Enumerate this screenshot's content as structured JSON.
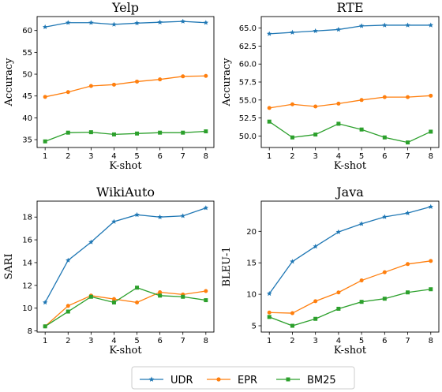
{
  "colors": {
    "UDR": "#1f77b4",
    "EPR": "#ff7f0e",
    "BM25": "#2ca02c"
  },
  "legend": {
    "entries": [
      "UDR",
      "EPR",
      "BM25"
    ],
    "placement": "bottom-center"
  },
  "chart_data": [
    {
      "type": "line",
      "title": "Yelp",
      "xlabel": "K-shot",
      "ylabel": "Accuracy",
      "x": [
        1,
        2,
        3,
        4,
        5,
        6,
        7,
        8
      ],
      "xlim": [
        0.65,
        8.35
      ],
      "ylim": [
        33.2,
        63.2
      ],
      "yticks": [
        35,
        40,
        45,
        50,
        55,
        60
      ],
      "ytick_labels": [
        "35",
        "40",
        "45",
        "50",
        "55",
        "60"
      ],
      "series": [
        {
          "name": "UDR",
          "marker": "star",
          "values": [
            60.8,
            61.8,
            61.8,
            61.4,
            61.7,
            61.9,
            62.1,
            61.8
          ]
        },
        {
          "name": "EPR",
          "marker": "circle",
          "values": [
            44.8,
            45.9,
            47.3,
            47.6,
            48.3,
            48.8,
            49.5,
            49.6
          ]
        },
        {
          "name": "BM25",
          "marker": "square",
          "values": [
            34.6,
            36.6,
            36.7,
            36.2,
            36.4,
            36.6,
            36.6,
            36.9
          ]
        }
      ]
    },
    {
      "type": "line",
      "title": "RTE",
      "xlabel": "K-shot",
      "ylabel": "Accuracy",
      "x": [
        1,
        2,
        3,
        4,
        5,
        6,
        7,
        8
      ],
      "xlim": [
        0.65,
        8.35
      ],
      "ylim": [
        48.4,
        66.6
      ],
      "yticks": [
        50.0,
        52.5,
        55.0,
        57.5,
        60.0,
        62.5,
        65.0
      ],
      "ytick_labels": [
        "50.0",
        "52.5",
        "55.0",
        "57.5",
        "60.0",
        "62.5",
        "65.0"
      ],
      "series": [
        {
          "name": "UDR",
          "marker": "star",
          "values": [
            64.2,
            64.4,
            64.6,
            64.8,
            65.3,
            65.4,
            65.4,
            65.4
          ]
        },
        {
          "name": "EPR",
          "marker": "circle",
          "values": [
            53.9,
            54.4,
            54.1,
            54.5,
            55.0,
            55.4,
            55.4,
            55.6
          ]
        },
        {
          "name": "BM25",
          "marker": "square",
          "values": [
            52.0,
            49.8,
            50.2,
            51.7,
            50.9,
            49.8,
            49.1,
            50.6
          ]
        }
      ]
    },
    {
      "type": "line",
      "title": "WikiAuto",
      "xlabel": "K-shot",
      "ylabel": "SARI",
      "x": [
        1,
        2,
        3,
        4,
        5,
        6,
        7,
        8
      ],
      "xlim": [
        0.65,
        8.35
      ],
      "ylim": [
        7.9,
        19.4
      ],
      "yticks": [
        8,
        10,
        12,
        14,
        16,
        18
      ],
      "ytick_labels": [
        "8",
        "10",
        "12",
        "14",
        "16",
        "18"
      ],
      "series": [
        {
          "name": "UDR",
          "marker": "star",
          "values": [
            10.5,
            14.2,
            15.8,
            17.6,
            18.2,
            18.0,
            18.1,
            18.8
          ]
        },
        {
          "name": "EPR",
          "marker": "circle",
          "values": [
            8.4,
            10.2,
            11.1,
            10.8,
            10.5,
            11.4,
            11.2,
            11.5
          ]
        },
        {
          "name": "BM25",
          "marker": "square",
          "values": [
            8.4,
            9.7,
            11.0,
            10.5,
            11.8,
            11.1,
            11.0,
            10.7
          ]
        }
      ]
    },
    {
      "type": "line",
      "title": "Java",
      "xlabel": "K-shot",
      "ylabel": "BLEU-1",
      "x": [
        1,
        2,
        3,
        4,
        5,
        6,
        7,
        8
      ],
      "xlim": [
        0.65,
        8.35
      ],
      "ylim": [
        4.0,
        24.8
      ],
      "yticks": [
        5,
        10,
        15,
        20
      ],
      "ytick_labels": [
        "5",
        "10",
        "15",
        "20"
      ],
      "series": [
        {
          "name": "UDR",
          "marker": "star",
          "values": [
            10.1,
            15.2,
            17.6,
            19.9,
            21.2,
            22.3,
            22.9,
            23.9
          ]
        },
        {
          "name": "EPR",
          "marker": "circle",
          "values": [
            7.1,
            7.0,
            8.9,
            10.3,
            12.2,
            13.5,
            14.8,
            15.3
          ]
        },
        {
          "name": "BM25",
          "marker": "square",
          "values": [
            6.4,
            5.0,
            6.1,
            7.7,
            8.8,
            9.3,
            10.3,
            10.8
          ]
        }
      ]
    }
  ]
}
